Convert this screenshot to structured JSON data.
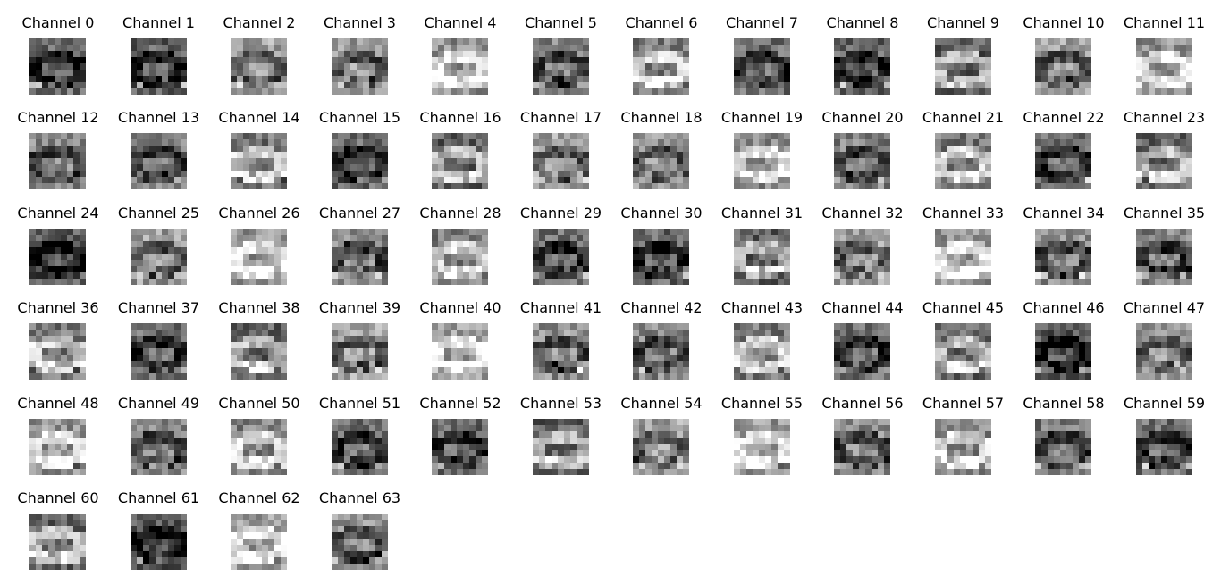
{
  "colormap": "gray",
  "channels": [
    {
      "label": "Channel 0"
    },
    {
      "label": "Channel 1"
    },
    {
      "label": "Channel 2"
    },
    {
      "label": "Channel 3"
    },
    {
      "label": "Channel 4"
    },
    {
      "label": "Channel 5"
    },
    {
      "label": "Channel 6"
    },
    {
      "label": "Channel 7"
    },
    {
      "label": "Channel 8"
    },
    {
      "label": "Channel 9"
    },
    {
      "label": "Channel 10"
    },
    {
      "label": "Channel 11"
    },
    {
      "label": "Channel 12"
    },
    {
      "label": "Channel 13"
    },
    {
      "label": "Channel 14"
    },
    {
      "label": "Channel 15"
    },
    {
      "label": "Channel 16"
    },
    {
      "label": "Channel 17"
    },
    {
      "label": "Channel 18"
    },
    {
      "label": "Channel 19"
    },
    {
      "label": "Channel 20"
    },
    {
      "label": "Channel 21"
    },
    {
      "label": "Channel 22"
    },
    {
      "label": "Channel 23"
    },
    {
      "label": "Channel 24"
    },
    {
      "label": "Channel 25"
    },
    {
      "label": "Channel 26"
    },
    {
      "label": "Channel 27"
    },
    {
      "label": "Channel 28"
    },
    {
      "label": "Channel 29"
    },
    {
      "label": "Channel 30"
    },
    {
      "label": "Channel 31"
    },
    {
      "label": "Channel 32"
    },
    {
      "label": "Channel 33"
    },
    {
      "label": "Channel 34"
    },
    {
      "label": "Channel 35"
    },
    {
      "label": "Channel 36"
    },
    {
      "label": "Channel 37"
    },
    {
      "label": "Channel 38"
    },
    {
      "label": "Channel 39"
    },
    {
      "label": "Channel 40"
    },
    {
      "label": "Channel 41"
    },
    {
      "label": "Channel 42"
    },
    {
      "label": "Channel 43"
    },
    {
      "label": "Channel 44"
    },
    {
      "label": "Channel 45"
    },
    {
      "label": "Channel 46"
    },
    {
      "label": "Channel 47"
    },
    {
      "label": "Channel 48"
    },
    {
      "label": "Channel 49"
    },
    {
      "label": "Channel 50"
    },
    {
      "label": "Channel 51"
    },
    {
      "label": "Channel 52"
    },
    {
      "label": "Channel 53"
    },
    {
      "label": "Channel 54"
    },
    {
      "label": "Channel 55"
    },
    {
      "label": "Channel 56"
    },
    {
      "label": "Channel 57"
    },
    {
      "label": "Channel 58"
    },
    {
      "label": "Channel 59"
    },
    {
      "label": "Channel 60"
    },
    {
      "label": "Channel 61"
    },
    {
      "label": "Channel 62"
    },
    {
      "label": "Channel 63"
    }
  ]
}
